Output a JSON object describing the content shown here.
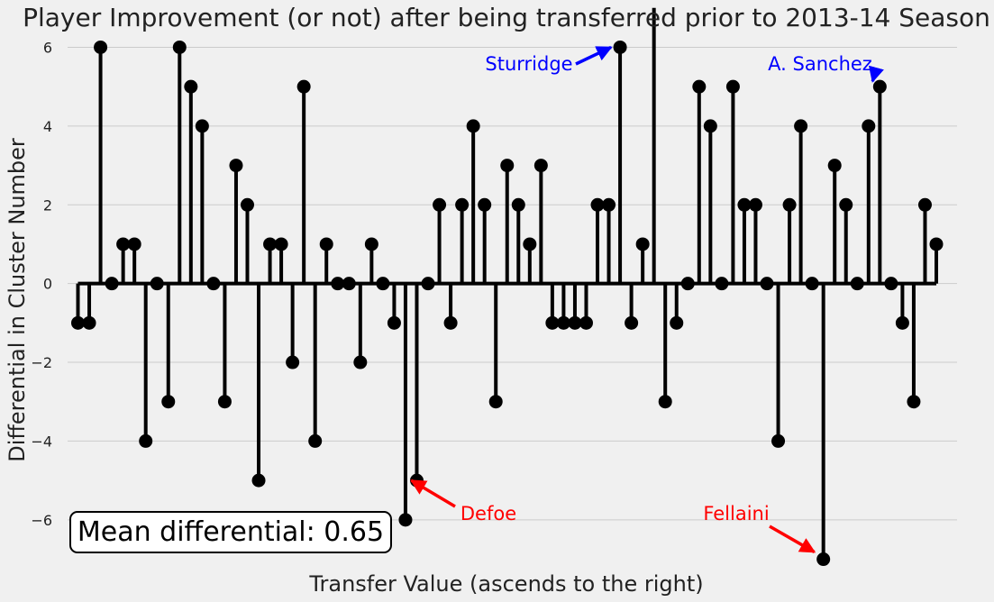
{
  "chart_data": {
    "type": "stem",
    "title": "Player Improvement (or not) after being transferred prior to 2013-14 Season",
    "xlabel": "Transfer Value (ascends to the right)",
    "ylabel": "Differential in Cluster Number",
    "ylim": [
      -7.4,
      6.4
    ],
    "yticks": [
      -6,
      -4,
      -2,
      0,
      2,
      4,
      6
    ],
    "grid": "y-only",
    "values": [
      -1,
      -1,
      6,
      0,
      1,
      1,
      -4,
      0,
      -3,
      6,
      5,
      4,
      0,
      -3,
      3,
      2,
      -5,
      1,
      1,
      -2,
      5,
      -4,
      1,
      0,
      0,
      -2,
      1,
      0,
      -1,
      -6,
      -5,
      0,
      2,
      -1,
      2,
      4,
      2,
      -3,
      3,
      2,
      1,
      3,
      -1,
      -1,
      -1,
      -1,
      2,
      2,
      6,
      -1,
      1,
      7,
      -3,
      -1,
      0,
      5,
      4,
      0,
      5,
      2,
      2,
      0,
      -4,
      2,
      4,
      0,
      -7,
      3,
      2,
      0,
      4,
      5,
      0,
      -1,
      -3,
      2,
      1
    ],
    "annotations": [
      {
        "label": "Sturridge",
        "color": "#0000ff",
        "point_index": 48
      },
      {
        "label": "A. Sanchez",
        "color": "#0000ff",
        "point_index": 71
      },
      {
        "label": "Defoe",
        "color": "#ff0000",
        "point_index": 30
      },
      {
        "label": "Fellaini",
        "color": "#ff0000",
        "point_index": 66
      }
    ],
    "summary_box": "Mean differential: 0.65"
  }
}
